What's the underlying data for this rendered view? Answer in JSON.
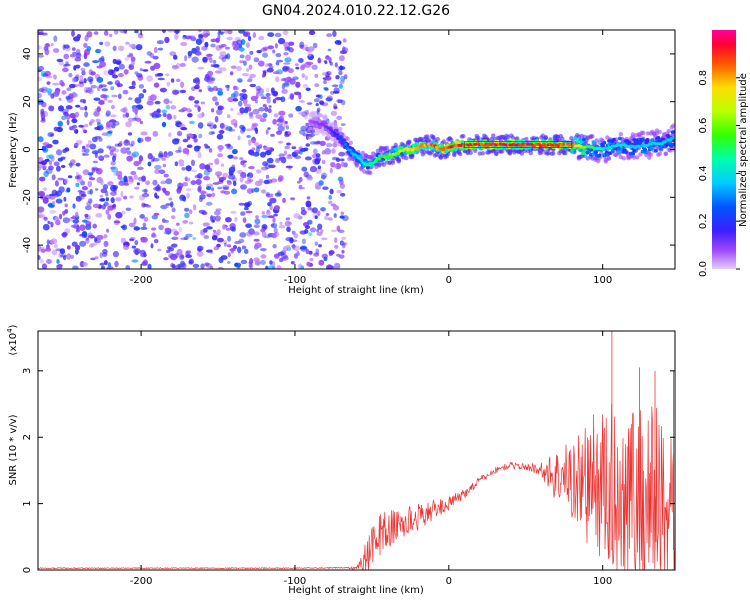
{
  "title": "GN04.2024.010.22.12.G26",
  "chart_data": [
    {
      "type": "heatmap",
      "xlabel": "Height of straight line (km)",
      "ylabel": "Frequency (Hz)",
      "xlim": [
        -267,
        147
      ],
      "ylim": [
        -50,
        50
      ],
      "xticks": [
        -200,
        -100,
        0,
        100
      ],
      "yticks": [
        -40,
        -20,
        0,
        20,
        40
      ],
      "colorbar": {
        "label": "Normalized spectral amplitude",
        "range": [
          0,
          1
        ],
        "ticks": [
          0.0,
          0.2,
          0.4,
          0.6,
          0.8
        ],
        "colormap": "rainbow"
      },
      "noise_region": {
        "x": [
          -267,
          -72
        ],
        "y": [
          -50,
          50
        ],
        "level": 0.12
      },
      "ridge_track": {
        "x": [
          -90,
          -80,
          -72,
          -65,
          -58,
          -52,
          -48,
          -44,
          -40,
          -36,
          -32,
          -28,
          -24,
          -20,
          -16,
          -12,
          -8,
          -4,
          0,
          10,
          20,
          40,
          60,
          80,
          90,
          100,
          110,
          120,
          130,
          140,
          147
        ],
        "freq": [
          12,
          10,
          6,
          0,
          -4,
          -7,
          -5,
          -3,
          -3,
          -2,
          -1,
          0,
          0,
          1,
          2,
          2,
          1,
          0,
          1,
          2,
          2,
          2,
          2,
          2,
          1,
          0,
          2,
          1,
          2,
          3,
          5
        ],
        "amplitude": [
          0.08,
          0.12,
          0.2,
          0.35,
          0.45,
          0.5,
          0.55,
          0.6,
          0.62,
          0.65,
          0.7,
          0.75,
          0.8,
          0.85,
          0.88,
          0.9,
          0.92,
          0.93,
          0.95,
          0.97,
          0.98,
          0.98,
          0.97,
          0.9,
          0.6,
          0.45,
          0.45,
          0.4,
          0.42,
          0.4,
          0.4
        ]
      }
    },
    {
      "type": "line",
      "xlabel": "Height of straight line (km)",
      "ylabel": "SNR (10 * v/v)",
      "y_multiplier": "(x10",
      "y_multiplier_exp": "4",
      "y_multiplier_close": ")",
      "xlim": [
        -267,
        147
      ],
      "ylim": [
        0,
        3.6
      ],
      "xticks": [
        -200,
        -100,
        0,
        100
      ],
      "yticks": [
        0,
        1,
        2,
        3
      ],
      "color": "#ee3333",
      "series": [
        {
          "x": [
            -267,
            -200,
            -100,
            -60,
            -52,
            -45,
            -40,
            -30,
            -20,
            -10,
            0,
            10,
            20,
            30,
            40,
            50,
            60,
            65,
            75,
            85,
            95,
            105,
            115,
            125,
            135,
            147
          ],
          "y_mean": [
            0.02,
            0.02,
            0.02,
            0.03,
            0.25,
            0.55,
            0.6,
            0.7,
            0.8,
            0.9,
            1.0,
            1.15,
            1.35,
            1.5,
            1.58,
            1.55,
            1.52,
            1.45,
            1.4,
            1.35,
            1.3,
            1.2,
            1.15,
            1.1,
            1.1,
            1.0
          ],
          "y_spread": [
            0.0,
            0.0,
            0.0,
            0.02,
            0.3,
            0.35,
            0.3,
            0.25,
            0.2,
            0.15,
            0.1,
            0.08,
            0.06,
            0.05,
            0.05,
            0.05,
            0.1,
            0.3,
            0.5,
            0.8,
            1.1,
            1.3,
            1.4,
            1.5,
            1.5,
            1.6
          ],
          "peaks": [
            {
              "x": 106,
              "y": 3.6
            },
            {
              "x": 124,
              "y": 3.05
            },
            {
              "x": 134,
              "y": 3.0
            },
            {
              "x": 146,
              "y": 3.0
            }
          ]
        }
      ]
    }
  ]
}
